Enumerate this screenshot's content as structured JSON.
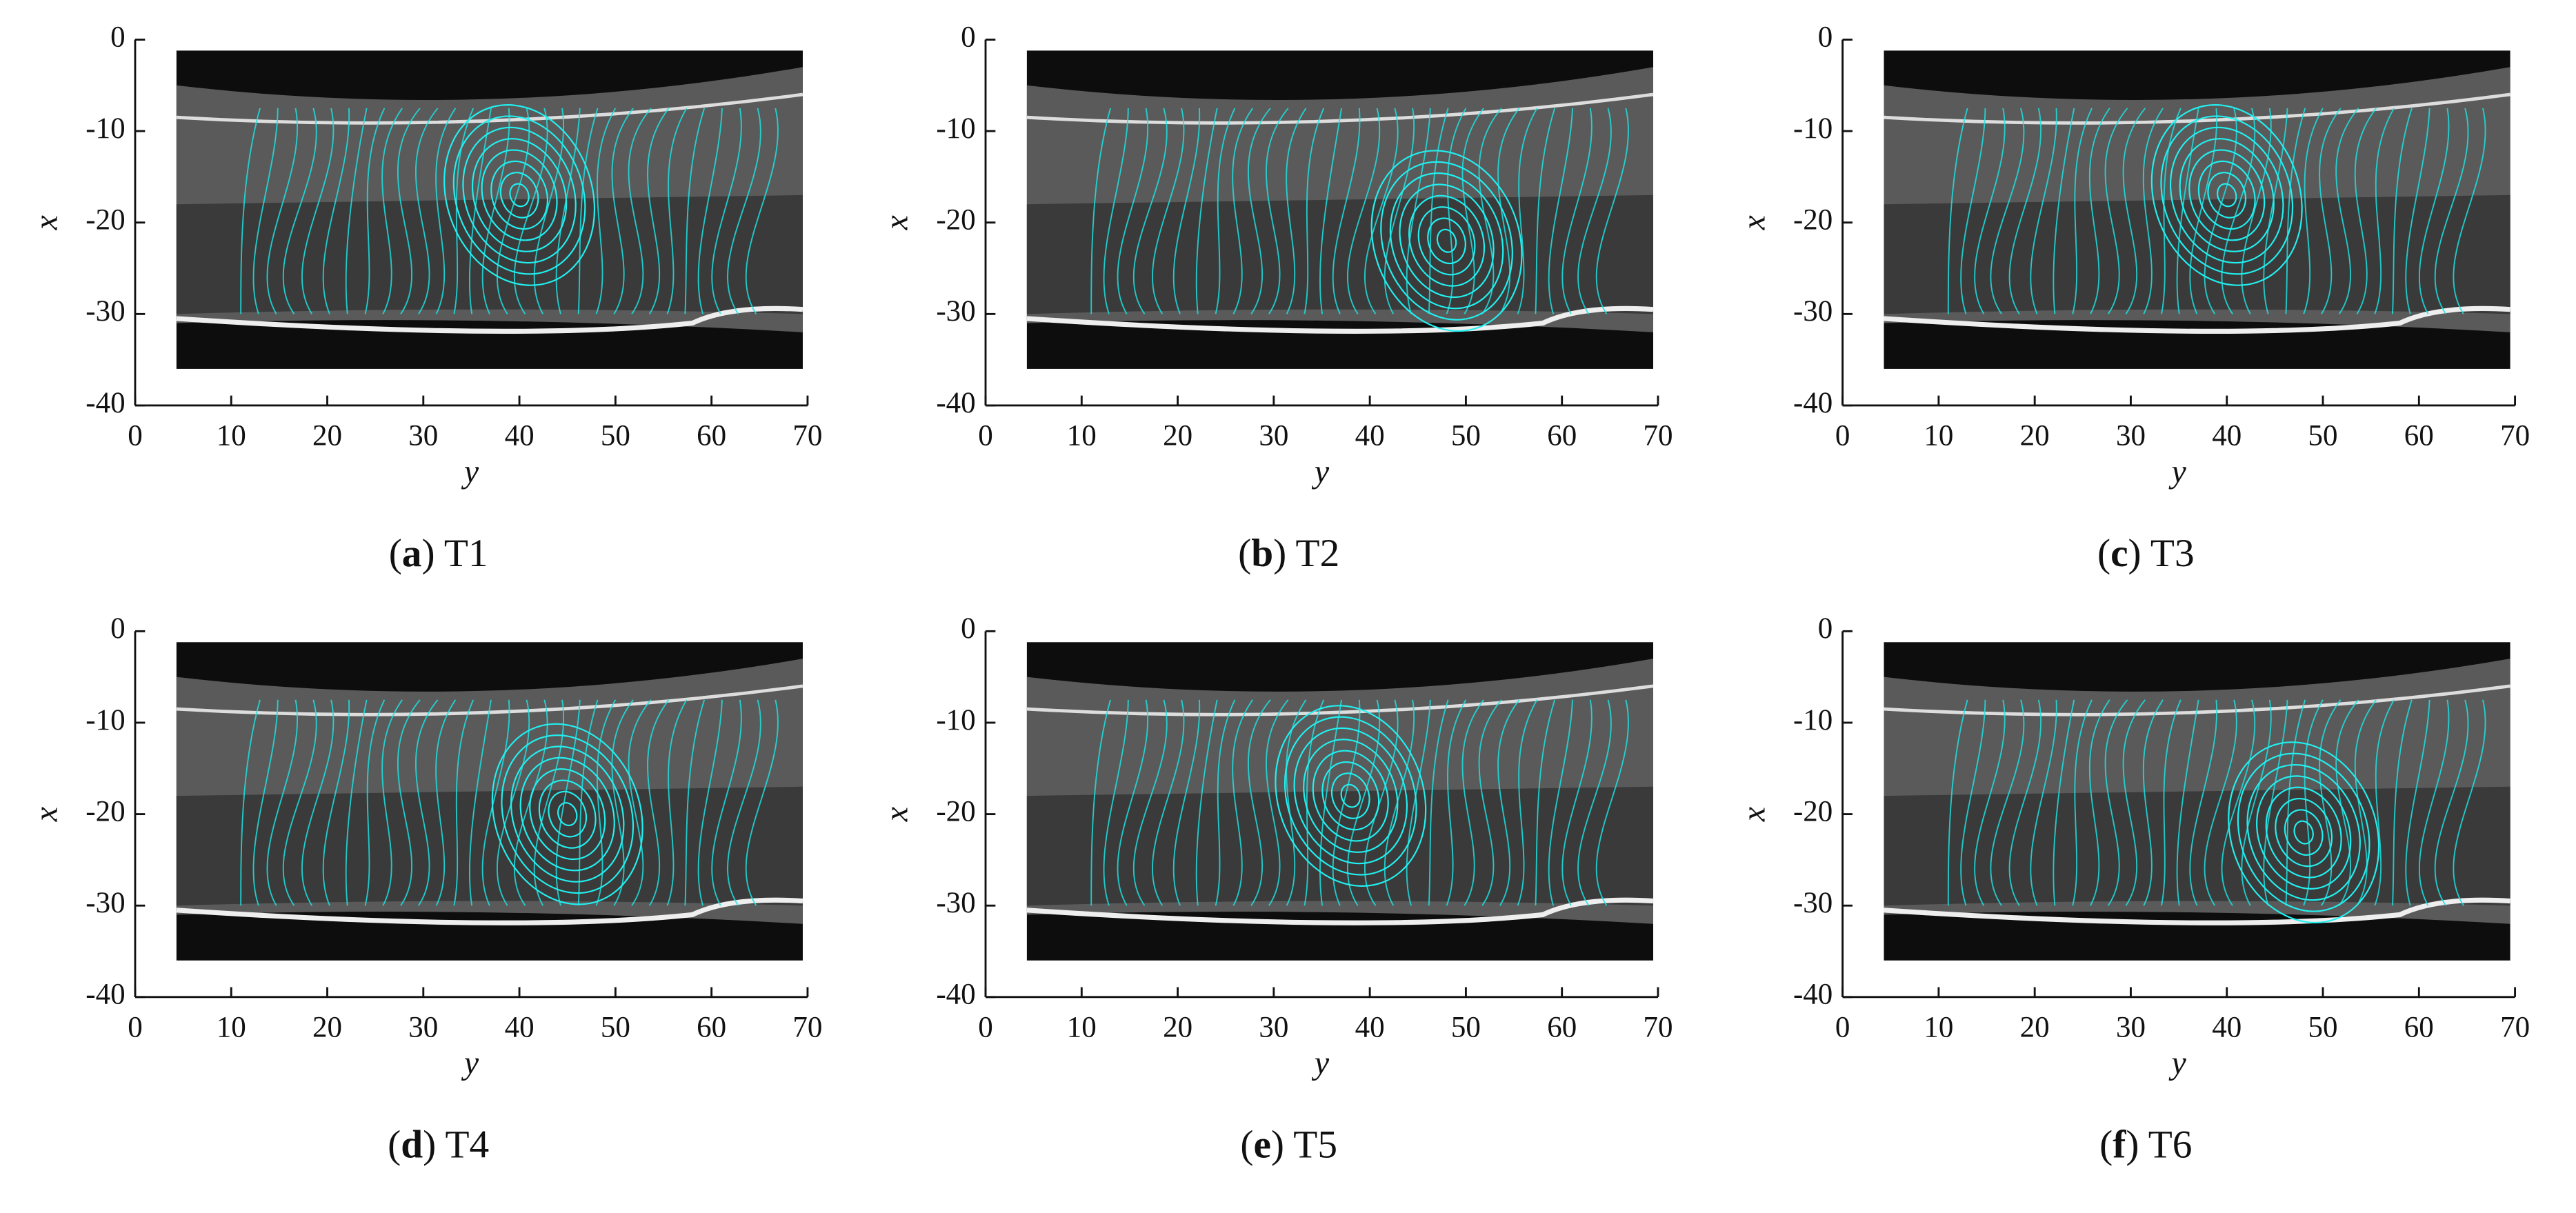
{
  "chart_data": [
    {
      "type": "image",
      "xlabel": "y",
      "ylabel": "x",
      "xlim": [
        0,
        70
      ],
      "ylim": [
        -40,
        0
      ],
      "xticks": [
        0,
        10,
        20,
        30,
        40,
        50,
        60,
        70
      ],
      "yticks": [
        0,
        -10,
        -20,
        -30,
        -40
      ],
      "caption": {
        "open": "(",
        "letter": "a",
        "rest": ") T1"
      }
    },
    {
      "type": "image",
      "xlabel": "y",
      "ylabel": "x",
      "xlim": [
        0,
        70
      ],
      "ylim": [
        -40,
        0
      ],
      "xticks": [
        0,
        10,
        20,
        30,
        40,
        50,
        60,
        70
      ],
      "yticks": [
        0,
        -10,
        -20,
        -30,
        -40
      ],
      "caption": {
        "open": "(",
        "letter": "b",
        "rest": ") T2"
      }
    },
    {
      "type": "image",
      "xlabel": "y",
      "ylabel": "x",
      "xlim": [
        0,
        70
      ],
      "ylim": [
        -40,
        0
      ],
      "xticks": [
        0,
        10,
        20,
        30,
        40,
        50,
        60,
        70
      ],
      "yticks": [
        0,
        -10,
        -20,
        -30,
        -40
      ],
      "caption": {
        "open": "(",
        "letter": "c",
        "rest": ") T3"
      }
    },
    {
      "type": "image",
      "xlabel": "y",
      "ylabel": "x",
      "xlim": [
        0,
        70
      ],
      "ylim": [
        -40,
        0
      ],
      "xticks": [
        0,
        10,
        20,
        30,
        40,
        50,
        60,
        70
      ],
      "yticks": [
        0,
        -10,
        -20,
        -30,
        -40
      ],
      "caption": {
        "open": "(",
        "letter": "d",
        "rest": ") T4"
      }
    },
    {
      "type": "image",
      "xlabel": "y",
      "ylabel": "x",
      "xlim": [
        0,
        70
      ],
      "ylim": [
        -40,
        0
      ],
      "xticks": [
        0,
        10,
        20,
        30,
        40,
        50,
        60,
        70
      ],
      "yticks": [
        0,
        -10,
        -20,
        -30,
        -40
      ],
      "caption": {
        "open": "(",
        "letter": "e",
        "rest": ") T5"
      }
    },
    {
      "type": "image",
      "xlabel": "y",
      "ylabel": "x",
      "xlim": [
        0,
        70
      ],
      "ylim": [
        -40,
        0
      ],
      "xticks": [
        0,
        10,
        20,
        30,
        40,
        50,
        60,
        70
      ],
      "yticks": [
        0,
        -10,
        -20,
        -30,
        -40
      ],
      "caption": {
        "open": "(",
        "letter": "f",
        "rest": ") T6"
      }
    }
  ]
}
